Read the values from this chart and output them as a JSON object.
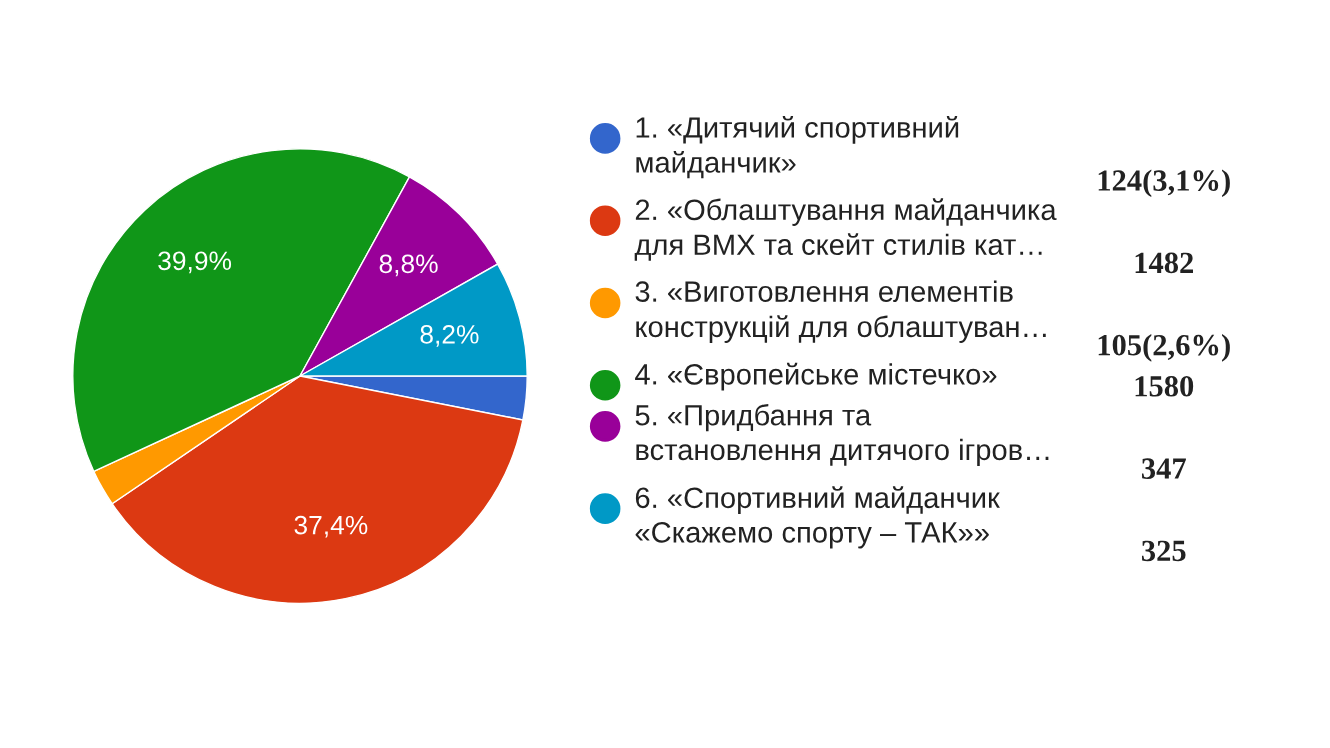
{
  "chart_data": {
    "type": "pie",
    "categories": [
      "1. «Дитячий спортивний\nмайданчик»",
      "2. «Облаштування майданчика\nдля BMX та скейт стилів кат…",
      "3. «Виготовлення елементів\nконструкцій для облаштуван…",
      "4. «Європейське містечко»",
      "5. «Придбання та\nвстановлення дитячого ігров…",
      "6. «Спортивний майданчик\n«Скажемо спорту – ТАК»»"
    ],
    "values": [
      3.1,
      37.4,
      2.6,
      39.9,
      8.8,
      8.2
    ],
    "colors": [
      "#3366cc",
      "#dc3912",
      "#ff9900",
      "#109618",
      "#990099",
      "#0099c6"
    ],
    "value_labels": [
      null,
      "37,4%",
      null,
      "39,9%",
      "8,8%",
      "8,2%"
    ],
    "annotations": [
      "124(3,1%)",
      "1482",
      "105(2,6%)",
      "1580",
      "347",
      "325"
    ],
    "legend": "right"
  }
}
